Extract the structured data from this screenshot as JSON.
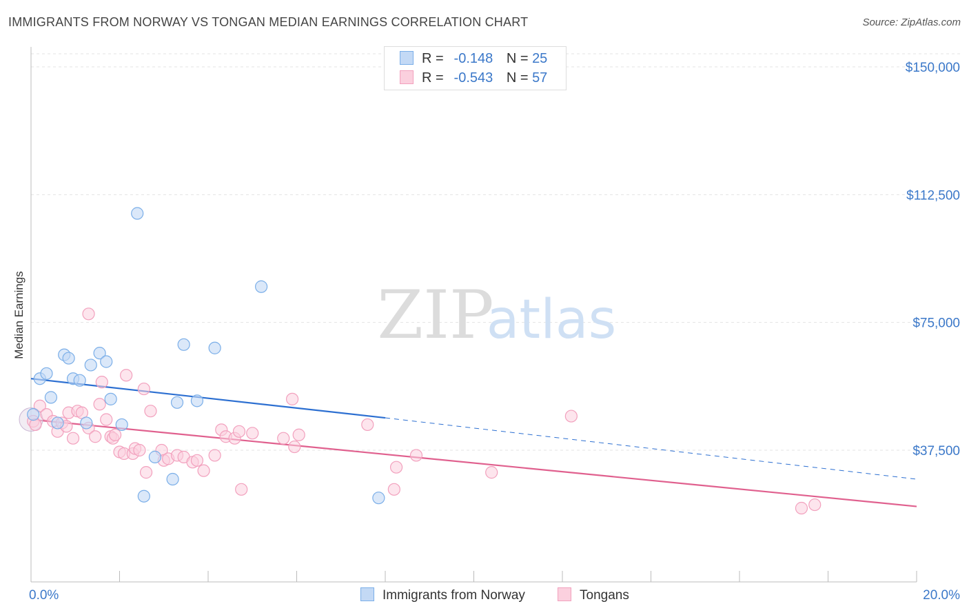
{
  "header": {
    "title": "IMMIGRANTS FROM NORWAY VS TONGAN MEDIAN EARNINGS CORRELATION CHART",
    "source": "Source: ZipAtlas.com"
  },
  "watermark": {
    "zip": "ZIP",
    "atlas": "atlas"
  },
  "legend": {
    "rows": [
      {
        "r_label": "R =",
        "r_value": "-0.148",
        "n_label": "N =",
        "n_value": "25"
      },
      {
        "r_label": "R =",
        "r_value": "-0.543",
        "n_label": "N =",
        "n_value": "57"
      }
    ]
  },
  "chart_data": {
    "type": "scatter",
    "title": "IMMIGRANTS FROM NORWAY VS TONGAN MEDIAN EARNINGS CORRELATION CHART",
    "ylabel": "Median Earnings",
    "xlim": [
      0,
      20
    ],
    "ylim": [
      0,
      155000
    ],
    "x_tick_labels": [
      "0.0%",
      "20.0%"
    ],
    "y_ticks": [
      37500,
      75000,
      112500,
      150000
    ],
    "y_tick_labels": [
      "$37,500",
      "$75,000",
      "$112,500",
      "$150,000"
    ],
    "grid": true,
    "legend_placement": "top-center",
    "colors": {
      "norway": "#7aaee8",
      "tongans": "#f2a0bd",
      "norway_line": "#2c6fd1",
      "tongans_line": "#e0608e",
      "tick": "#3b78c9"
    },
    "series": [
      {
        "name": "Immigrants from Norway",
        "r": -0.148,
        "n": 25,
        "trend": {
          "x0": 0,
          "y0": 58500,
          "x1": 8,
          "y1": 47000,
          "dash_to_x": 20,
          "dash_to_y": 29000
        },
        "points": [
          [
            0.05,
            48000
          ],
          [
            0.2,
            58500
          ],
          [
            0.35,
            60000
          ],
          [
            0.45,
            53000
          ],
          [
            0.6,
            45500
          ],
          [
            0.75,
            65500
          ],
          [
            0.85,
            64500
          ],
          [
            0.95,
            58500
          ],
          [
            1.1,
            58000
          ],
          [
            1.25,
            45500
          ],
          [
            1.35,
            62500
          ],
          [
            1.55,
            66000
          ],
          [
            1.7,
            63500
          ],
          [
            1.8,
            52500
          ],
          [
            2.05,
            45000
          ],
          [
            2.4,
            107000
          ],
          [
            2.55,
            24000
          ],
          [
            2.8,
            35500
          ],
          [
            3.2,
            29000
          ],
          [
            3.3,
            51500
          ],
          [
            3.45,
            68500
          ],
          [
            3.75,
            52000
          ],
          [
            4.15,
            67500
          ],
          [
            5.2,
            85500
          ],
          [
            7.85,
            23500
          ]
        ]
      },
      {
        "name": "Tongans",
        "r": -0.543,
        "n": 57,
        "trend": {
          "x0": 0,
          "y0": 46500,
          "x1": 20,
          "y1": 21000
        },
        "points": [
          [
            0.05,
            46000
          ],
          [
            0.1,
            45000
          ],
          [
            0.2,
            50500
          ],
          [
            0.35,
            48000
          ],
          [
            0.5,
            46000
          ],
          [
            0.6,
            43000
          ],
          [
            0.7,
            45500
          ],
          [
            0.8,
            44500
          ],
          [
            0.85,
            48500
          ],
          [
            0.95,
            41000
          ],
          [
            1.05,
            49000
          ],
          [
            1.15,
            48500
          ],
          [
            1.3,
            44000
          ],
          [
            1.45,
            41500
          ],
          [
            1.55,
            51000
          ],
          [
            1.6,
            57500
          ],
          [
            1.7,
            46500
          ],
          [
            1.8,
            41500
          ],
          [
            1.85,
            41000
          ],
          [
            1.9,
            42000
          ],
          [
            1.3,
            77500
          ],
          [
            2.0,
            37000
          ],
          [
            2.1,
            36500
          ],
          [
            2.15,
            59500
          ],
          [
            2.3,
            36500
          ],
          [
            2.35,
            38000
          ],
          [
            2.45,
            37500
          ],
          [
            2.55,
            55500
          ],
          [
            2.6,
            31000
          ],
          [
            2.7,
            49000
          ],
          [
            2.95,
            37500
          ],
          [
            3.0,
            34500
          ],
          [
            3.1,
            35000
          ],
          [
            3.3,
            36000
          ],
          [
            3.45,
            35500
          ],
          [
            3.65,
            34000
          ],
          [
            3.75,
            34500
          ],
          [
            3.9,
            31500
          ],
          [
            4.15,
            36000
          ],
          [
            4.3,
            43500
          ],
          [
            4.4,
            41500
          ],
          [
            4.6,
            41000
          ],
          [
            4.7,
            43000
          ],
          [
            4.75,
            26000
          ],
          [
            5.0,
            42500
          ],
          [
            5.7,
            41000
          ],
          [
            5.9,
            52500
          ],
          [
            5.95,
            38500
          ],
          [
            6.05,
            42000
          ],
          [
            7.6,
            45000
          ],
          [
            8.2,
            26000
          ],
          [
            8.25,
            32500
          ],
          [
            8.7,
            36000
          ],
          [
            10.4,
            31000
          ],
          [
            12.2,
            47500
          ],
          [
            17.4,
            20500
          ],
          [
            17.7,
            21500
          ]
        ]
      }
    ]
  },
  "bottom_legend": {
    "items": [
      {
        "label": "Immigrants from Norway"
      },
      {
        "label": "Tongans"
      }
    ]
  }
}
